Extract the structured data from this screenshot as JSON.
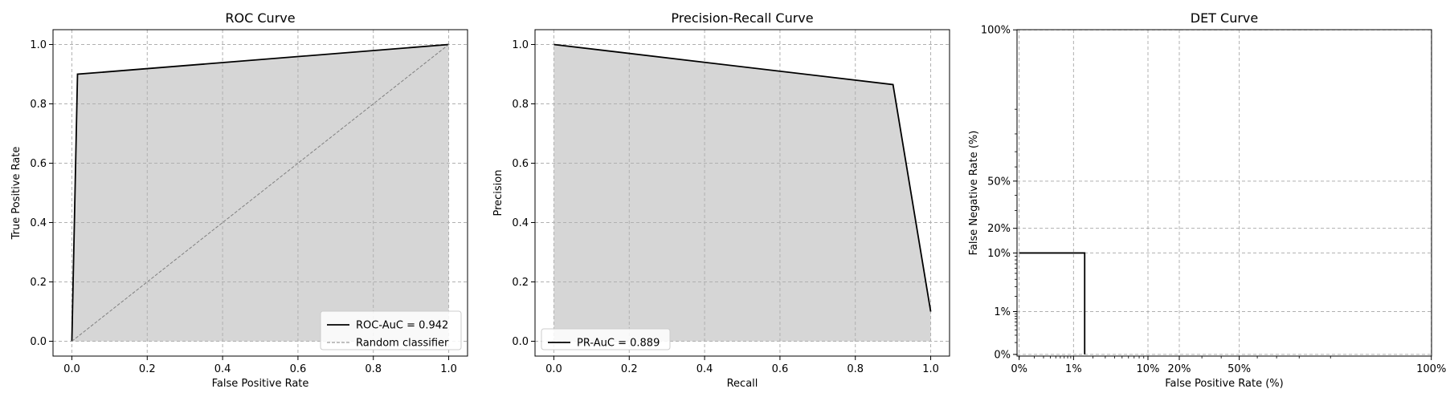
{
  "chart_data": [
    {
      "type": "line",
      "title": "ROC Curve",
      "xlabel": "False Positive Rate",
      "ylabel": "True Positive Rate",
      "xlim": [
        -0.05,
        1.05
      ],
      "ylim": [
        -0.05,
        1.05
      ],
      "xticks": [
        0.0,
        0.2,
        0.4,
        0.6,
        0.8,
        1.0
      ],
      "yticks": [
        0.0,
        0.2,
        0.4,
        0.6,
        0.8,
        1.0
      ],
      "xtick_labels": [
        "0.0",
        "0.2",
        "0.4",
        "0.6",
        "0.8",
        "1.0"
      ],
      "ytick_labels": [
        "0.0",
        "0.2",
        "0.4",
        "0.6",
        "0.8",
        "1.0"
      ],
      "grid": true,
      "fill_under": true,
      "legend_position": "lower-right",
      "series": [
        {
          "name": "ROC-AuC = 0.942",
          "style": "solid",
          "color": "#000000",
          "x": [
            0.0,
            0.015,
            1.0
          ],
          "y": [
            0.0,
            0.9,
            1.0
          ]
        },
        {
          "name": "Random classifier",
          "style": "dashed",
          "color": "#808080",
          "x": [
            0.0,
            1.0
          ],
          "y": [
            0.0,
            1.0
          ]
        }
      ]
    },
    {
      "type": "line",
      "title": "Precision-Recall Curve",
      "xlabel": "Recall",
      "ylabel": "Precision",
      "xlim": [
        -0.05,
        1.05
      ],
      "ylim": [
        -0.05,
        1.05
      ],
      "xticks": [
        0.0,
        0.2,
        0.4,
        0.6,
        0.8,
        1.0
      ],
      "yticks": [
        0.0,
        0.2,
        0.4,
        0.6,
        0.8,
        1.0
      ],
      "xtick_labels": [
        "0.0",
        "0.2",
        "0.4",
        "0.6",
        "0.8",
        "1.0"
      ],
      "ytick_labels": [
        "0.0",
        "0.2",
        "0.4",
        "0.6",
        "0.8",
        "1.0"
      ],
      "grid": true,
      "fill_under": true,
      "legend_position": "lower-left",
      "series": [
        {
          "name": "PR-AuC = 0.889",
          "style": "solid",
          "color": "#000000",
          "x": [
            0.0,
            0.9,
            1.0
          ],
          "y": [
            1.0,
            0.865,
            0.1
          ]
        }
      ]
    },
    {
      "type": "line",
      "title": "DET Curve",
      "xlabel": "False Positive Rate (%)",
      "ylabel": "False Negative Rate (%)",
      "scale": "normal-deviate",
      "xticks": [
        0,
        1,
        10,
        20,
        50,
        100
      ],
      "yticks": [
        0,
        1,
        10,
        20,
        50,
        100
      ],
      "xtick_labels": [
        "0%",
        "1%",
        "10%",
        "20%",
        "50%",
        "100%"
      ],
      "ytick_labels": [
        "0%",
        "1%",
        "10%",
        "20%",
        "50%",
        "100%"
      ],
      "grid": true,
      "series": [
        {
          "style": "solid",
          "color": "#000000",
          "x": [
            0,
            1.5,
            1.5
          ],
          "y": [
            10,
            10,
            0
          ]
        }
      ]
    }
  ],
  "colors": {
    "fill": "#d6d6d6",
    "grid": "#b0b0b0",
    "line": "#000000",
    "random": "#808080"
  }
}
